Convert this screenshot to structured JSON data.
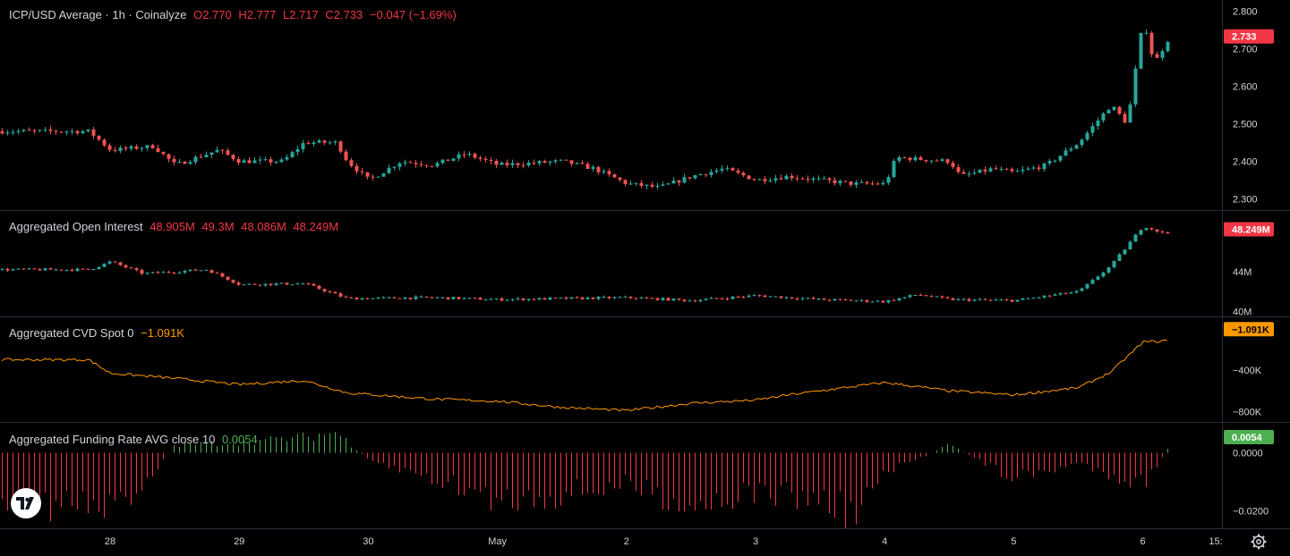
{
  "panes": {
    "price": {
      "title": "ICP/USD Average · 1h · Coinalyze",
      "o_label": "O",
      "o": "2.770",
      "h_label": "H",
      "h": "2.777",
      "l_label": "L",
      "l": "2.717",
      "c_label": "C",
      "c": "2.733",
      "change": "−0.047 (−1.69%)"
    },
    "oi": {
      "title": "Aggregated Open Interest",
      "o": "48.905M",
      "h": "49.3M",
      "l": "48.086M",
      "c": "48.249M"
    },
    "cvd": {
      "title": "Aggregated CVD Spot 0",
      "value": "−1.091K"
    },
    "funding": {
      "title": "Aggregated Funding Rate AVG close 10",
      "value": "0.0054"
    }
  },
  "axes": {
    "price_ticks": [
      "2.800",
      "2.700",
      "2.600",
      "2.500",
      "2.400",
      "2.300"
    ],
    "price_tag": "2.733",
    "oi_ticks": [
      "44M",
      "40M"
    ],
    "oi_tag": "48.249M",
    "cvd_ticks": [
      "−400K",
      "−800K"
    ],
    "cvd_tag": "−1.091K",
    "funding_ticks": [
      "0.0000",
      "−0.0200"
    ],
    "funding_tag": "0.0054",
    "time_labels": [
      "28",
      "29",
      "30",
      "May",
      "2",
      "3",
      "4",
      "5",
      "6",
      "15:"
    ]
  },
  "colors": {
    "background": "#000000",
    "up": "#26a69a",
    "down": "#ef5350",
    "cvd_line": "#ff9800",
    "funding_pos": "#4caf50",
    "funding_neg": "#f23645",
    "tag_price": "#f23645",
    "tag_cvd": "#ff9800",
    "tag_funding": "#4caf50"
  },
  "icons": {
    "logo": "tradingview-logo-icon",
    "settings": "gear-icon"
  },
  "chart_data": [
    {
      "type": "candlestick",
      "interval": "1h",
      "start_day": "27",
      "series_price_path": [
        [
          "27 20:00",
          2.48
        ],
        [
          "28 00:00",
          2.43
        ],
        [
          "28 08:00",
          2.44
        ],
        [
          "28 12:00",
          2.39
        ],
        [
          "28 20:00",
          2.43
        ],
        [
          "29 00:00",
          2.4
        ],
        [
          "29 08:00",
          2.4
        ],
        [
          "29 12:00",
          2.45
        ],
        [
          "29 18:00",
          2.45
        ],
        [
          "29 20:00",
          2.4
        ],
        [
          "30 00:00",
          2.35
        ],
        [
          "30 06:00",
          2.4
        ],
        [
          "30 12:00",
          2.39
        ],
        [
          "30 18:00",
          2.42
        ],
        [
          "May 00:00",
          2.39
        ],
        [
          "May 12:00",
          2.4
        ],
        [
          "May 18:00",
          2.38
        ],
        [
          "2 00:00",
          2.34
        ],
        [
          "2 06:00",
          2.33
        ],
        [
          "2 12:00",
          2.36
        ],
        [
          "2 18:00",
          2.38
        ],
        [
          "3 00:00",
          2.35
        ],
        [
          "3 06:00",
          2.36
        ],
        [
          "3 12:00",
          2.35
        ],
        [
          "3 18:00",
          2.34
        ],
        [
          "4 00:00",
          2.34
        ],
        [
          "4 02:00",
          2.41
        ],
        [
          "4 12:00",
          2.4
        ],
        [
          "4 14:00",
          2.36
        ],
        [
          "4 20:00",
          2.38
        ],
        [
          "5 00:00",
          2.37
        ],
        [
          "5 06:00",
          2.39
        ],
        [
          "5 12:00",
          2.45
        ],
        [
          "5 18:00",
          2.55
        ],
        [
          "5 21:00",
          2.5
        ],
        [
          "6 00:00",
          2.78
        ],
        [
          "6 02:00",
          2.66
        ],
        [
          "6 06:00",
          2.76
        ],
        [
          "6 08:00",
          2.73
        ]
      ],
      "ylim": [
        2.27,
        2.83
      ]
    },
    {
      "type": "candlestick",
      "name": "Aggregated Open Interest",
      "unit": "M",
      "path": [
        [
          "27 20:00",
          44.2
        ],
        [
          "28 00:00",
          45.0
        ],
        [
          "28 06:00",
          43.8
        ],
        [
          "28 18:00",
          44.2
        ],
        [
          "29 00:00",
          42.7
        ],
        [
          "29 12:00",
          42.8
        ],
        [
          "29 20:00",
          41.3
        ],
        [
          "30 12:00",
          41.4
        ],
        [
          "May 00:00",
          41.2
        ],
        [
          "2 00:00",
          41.4
        ],
        [
          "2 12:00",
          41.1
        ],
        [
          "3 00:00",
          41.6
        ],
        [
          "3 12:00",
          41.2
        ],
        [
          "4 00:00",
          41.0
        ],
        [
          "4 06:00",
          41.7
        ],
        [
          "4 12:00",
          41.2
        ],
        [
          "5 00:00",
          41.1
        ],
        [
          "5 12:00",
          42.0
        ],
        [
          "5 18:00",
          44.6
        ],
        [
          "6 00:00",
          48.6
        ],
        [
          "6 04:00",
          47.8
        ],
        [
          "6 08:00",
          48.249
        ]
      ],
      "ylim": [
        39.5,
        50.0
      ]
    },
    {
      "type": "line",
      "name": "Aggregated CVD Spot",
      "unit": "K",
      "path": [
        [
          "27 20:00",
          -300
        ],
        [
          "28 00:00",
          -430
        ],
        [
          "28 12:00",
          -480
        ],
        [
          "29 00:00",
          -540
        ],
        [
          "29 12:00",
          -500
        ],
        [
          "29 20:00",
          -620
        ],
        [
          "30 12:00",
          -680
        ],
        [
          "May 00:00",
          -700
        ],
        [
          "May 12:00",
          -760
        ],
        [
          "2 00:00",
          -790
        ],
        [
          "2 12:00",
          -720
        ],
        [
          "3 00:00",
          -690
        ],
        [
          "3 06:00",
          -640
        ],
        [
          "3 12:00",
          -600
        ],
        [
          "4 00:00",
          -520
        ],
        [
          "4 06:00",
          -560
        ],
        [
          "4 12:00",
          -600
        ],
        [
          "5 00:00",
          -640
        ],
        [
          "5 12:00",
          -570
        ],
        [
          "5 18:00",
          -420
        ],
        [
          "6 00:00",
          -130
        ],
        [
          "6 04:00",
          -120
        ],
        [
          "6 08:00",
          -1.091
        ]
      ],
      "ylim": [
        -900,
        100
      ]
    },
    {
      "type": "bar",
      "name": "Aggregated Funding Rate AVG close 10",
      "path": [
        [
          "27 20:00",
          -0.02
        ],
        [
          "28 00:00",
          -0.022
        ],
        [
          "28 06:00",
          -0.012
        ],
        [
          "28 12:00",
          0.003
        ],
        [
          "29 00:00",
          0.004
        ],
        [
          "29 12:00",
          0.006
        ],
        [
          "29 18:00",
          0.008
        ],
        [
          "30 00:00",
          -0.003
        ],
        [
          "30 12:00",
          -0.01
        ],
        [
          "May 00:00",
          -0.018
        ],
        [
          "May 12:00",
          -0.016
        ],
        [
          "2 00:00",
          -0.012
        ],
        [
          "2 12:00",
          -0.02
        ],
        [
          "3 00:00",
          -0.015
        ],
        [
          "3 12:00",
          -0.018
        ],
        [
          "3 18:00",
          -0.024
        ],
        [
          "4 00:00",
          -0.008
        ],
        [
          "4 12:00",
          0.003
        ],
        [
          "5 00:00",
          -0.01
        ],
        [
          "5 12:00",
          -0.004
        ],
        [
          "6 00:00",
          -0.012
        ],
        [
          "6 06:00",
          0.006
        ],
        [
          "6 08:00",
          0.0054
        ]
      ],
      "ylim": [
        -0.026,
        0.01
      ]
    }
  ]
}
